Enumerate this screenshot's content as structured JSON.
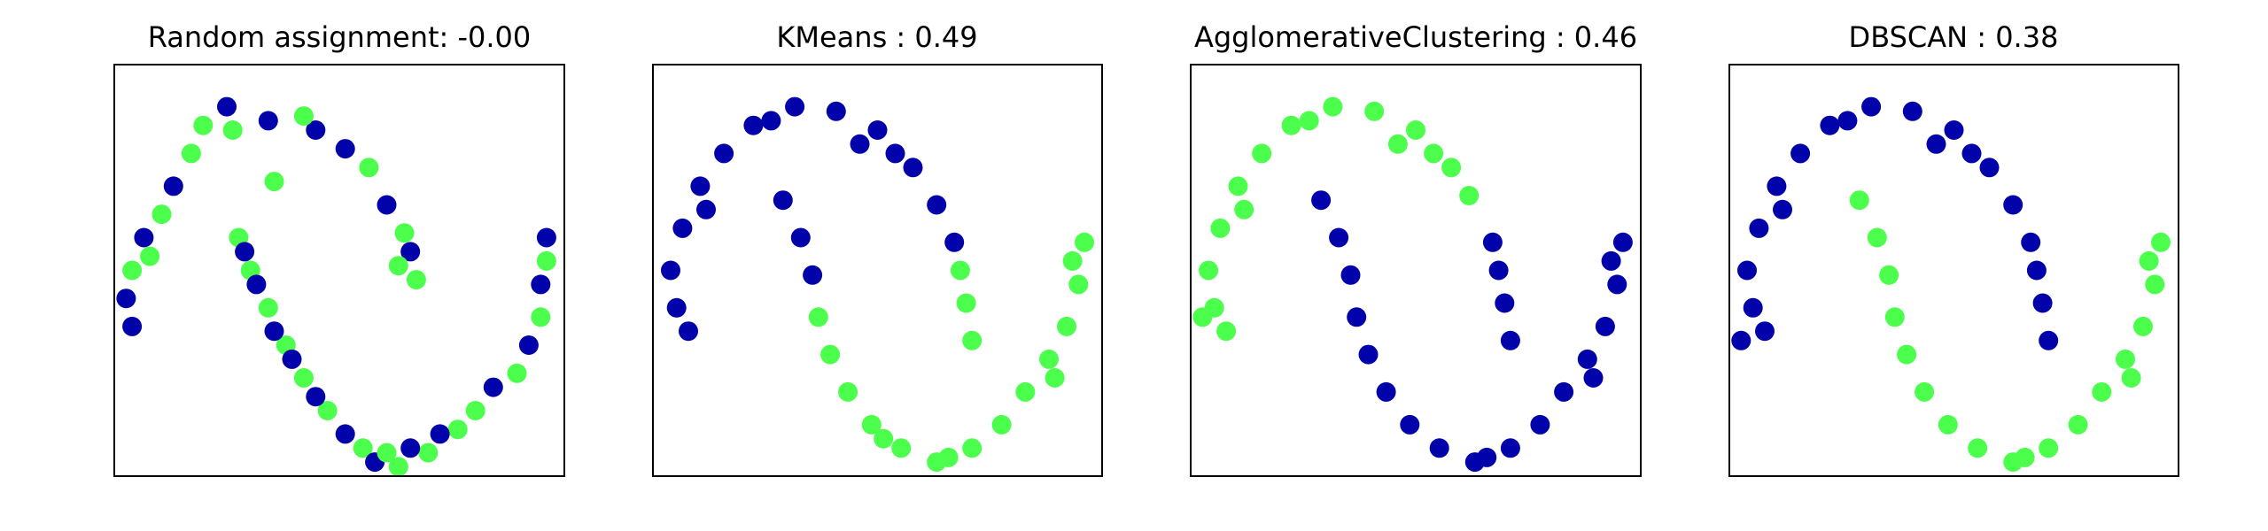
{
  "figure": {
    "colors": {
      "cluster_0": "#0202aa",
      "cluster_1": "#4dff4d"
    }
  },
  "chart_data": [
    {
      "type": "scatter",
      "title": "Random assignment: -0.00",
      "xlim": [
        -1.6,
        2.2
      ],
      "ylim": [
        -2.0,
        2.4
      ],
      "x_ticks": "none",
      "y_ticks": "none",
      "legend": "none",
      "grid": false,
      "points": [
        {
          "x": 1.3,
          "y": -1.5,
          "c": 1
        },
        {
          "x": 1.05,
          "y": -1.75,
          "c": 1
        },
        {
          "x": 0.8,
          "y": -1.9,
          "c": 1
        },
        {
          "x": 0.5,
          "y": -1.7,
          "c": 1
        },
        {
          "x": 0.2,
          "y": -1.3,
          "c": 1
        },
        {
          "x": 0.0,
          "y": -0.95,
          "c": 1
        },
        {
          "x": -0.15,
          "y": -0.6,
          "c": 1
        },
        {
          "x": -0.3,
          "y": -0.2,
          "c": 1
        },
        {
          "x": -0.45,
          "y": 0.2,
          "c": 1
        },
        {
          "x": -0.55,
          "y": 0.55,
          "c": 1
        },
        {
          "x": -0.25,
          "y": 1.15,
          "c": 1
        },
        {
          "x": -0.6,
          "y": 1.7,
          "c": 1
        },
        {
          "x": -0.95,
          "y": 1.45,
          "c": 1
        },
        {
          "x": -1.2,
          "y": 0.8,
          "c": 1
        },
        {
          "x": -1.45,
          "y": 0.2,
          "c": 1
        },
        {
          "x": 0.55,
          "y": 1.3,
          "c": 1
        },
        {
          "x": 0.85,
          "y": 0.6,
          "c": 1
        },
        {
          "x": 0.95,
          "y": 0.1,
          "c": 1
        },
        {
          "x": 1.8,
          "y": -0.9,
          "c": 1
        },
        {
          "x": 2.0,
          "y": -0.3,
          "c": 1
        },
        {
          "x": 2.05,
          "y": 0.3,
          "c": 1
        },
        {
          "x": 1.6,
          "y": -1.05,
          "c": 0
        },
        {
          "x": 1.15,
          "y": -1.55,
          "c": 0
        },
        {
          "x": 0.9,
          "y": -1.7,
          "c": 0
        },
        {
          "x": 0.6,
          "y": -1.85,
          "c": 0
        },
        {
          "x": 0.35,
          "y": -1.55,
          "c": 0
        },
        {
          "x": 0.1,
          "y": -1.15,
          "c": 0
        },
        {
          "x": -0.1,
          "y": -0.75,
          "c": 0
        },
        {
          "x": -0.25,
          "y": -0.45,
          "c": 0
        },
        {
          "x": -0.4,
          "y": 0.05,
          "c": 0
        },
        {
          "x": -0.5,
          "y": 0.4,
          "c": 0
        },
        {
          "x": -0.65,
          "y": 1.95,
          "c": 0
        },
        {
          "x": -0.3,
          "y": 1.8,
          "c": 0
        },
        {
          "x": 0.1,
          "y": 1.7,
          "c": 0
        },
        {
          "x": 0.35,
          "y": 1.5,
          "c": 0
        },
        {
          "x": 0.7,
          "y": 0.9,
          "c": 0
        },
        {
          "x": 0.9,
          "y": 0.4,
          "c": 0
        },
        {
          "x": -1.1,
          "y": 1.1,
          "c": 0
        },
        {
          "x": -1.35,
          "y": 0.55,
          "c": 0
        },
        {
          "x": -1.5,
          "y": -0.1,
          "c": 0
        },
        {
          "x": -1.45,
          "y": -0.4,
          "c": 0
        },
        {
          "x": 1.9,
          "y": -0.6,
          "c": 0
        },
        {
          "x": 2.0,
          "y": 0.05,
          "c": 0
        },
        {
          "x": 2.05,
          "y": 0.55,
          "c": 0
        },
        {
          "x": 0.7,
          "y": -1.75,
          "c": 1
        },
        {
          "x": 1.45,
          "y": -1.3,
          "c": 1
        },
        {
          "x": 0.0,
          "y": 1.85,
          "c": 1
        },
        {
          "x": -0.85,
          "y": 1.75,
          "c": 1
        },
        {
          "x": -1.3,
          "y": 0.35,
          "c": 1
        },
        {
          "x": 0.8,
          "y": 0.25,
          "c": 1
        }
      ]
    },
    {
      "type": "scatter",
      "title": "KMeans : 0.49",
      "xlim": [
        -1.6,
        2.2
      ],
      "ylim": [
        -2.0,
        2.4
      ],
      "x_ticks": "none",
      "y_ticks": "none",
      "legend": "none",
      "grid": false,
      "points": [
        {
          "x": -1.45,
          "y": 0.2,
          "c": 0
        },
        {
          "x": -1.35,
          "y": 0.65,
          "c": 0
        },
        {
          "x": -1.2,
          "y": 1.1,
          "c": 0
        },
        {
          "x": -1.0,
          "y": 1.45,
          "c": 0
        },
        {
          "x": -0.75,
          "y": 1.75,
          "c": 0
        },
        {
          "x": -0.4,
          "y": 1.95,
          "c": 0
        },
        {
          "x": -0.05,
          "y": 1.9,
          "c": 0
        },
        {
          "x": 0.3,
          "y": 1.7,
          "c": 0
        },
        {
          "x": 0.6,
          "y": 1.3,
          "c": 0
        },
        {
          "x": 0.8,
          "y": 0.9,
          "c": 0
        },
        {
          "x": 0.95,
          "y": 0.5,
          "c": 0
        },
        {
          "x": -1.4,
          "y": -0.2,
          "c": 0
        },
        {
          "x": -1.3,
          "y": -0.45,
          "c": 0
        },
        {
          "x": -0.5,
          "y": 0.95,
          "c": 0
        },
        {
          "x": -0.35,
          "y": 0.55,
          "c": 0
        },
        {
          "x": -0.25,
          "y": 0.15,
          "c": 0
        },
        {
          "x": -0.6,
          "y": 1.8,
          "c": 0
        },
        {
          "x": 0.15,
          "y": 1.55,
          "c": 0
        },
        {
          "x": -1.15,
          "y": 0.85,
          "c": 0
        },
        {
          "x": 0.45,
          "y": 1.45,
          "c": 0
        },
        {
          "x": -0.2,
          "y": -0.3,
          "c": 1
        },
        {
          "x": -0.1,
          "y": -0.7,
          "c": 1
        },
        {
          "x": 0.05,
          "y": -1.1,
          "c": 1
        },
        {
          "x": 0.25,
          "y": -1.45,
          "c": 1
        },
        {
          "x": 0.5,
          "y": -1.7,
          "c": 1
        },
        {
          "x": 0.8,
          "y": -1.85,
          "c": 1
        },
        {
          "x": 1.1,
          "y": -1.7,
          "c": 1
        },
        {
          "x": 1.35,
          "y": -1.45,
          "c": 1
        },
        {
          "x": 1.55,
          "y": -1.1,
          "c": 1
        },
        {
          "x": 1.75,
          "y": -0.75,
          "c": 1
        },
        {
          "x": 1.9,
          "y": -0.4,
          "c": 1
        },
        {
          "x": 2.0,
          "y": 0.05,
          "c": 1
        },
        {
          "x": 2.05,
          "y": 0.5,
          "c": 1
        },
        {
          "x": 1.0,
          "y": 0.2,
          "c": 1
        },
        {
          "x": 1.05,
          "y": -0.15,
          "c": 1
        },
        {
          "x": 1.1,
          "y": -0.55,
          "c": 1
        },
        {
          "x": 0.9,
          "y": -1.8,
          "c": 1
        },
        {
          "x": 1.8,
          "y": -0.95,
          "c": 1
        },
        {
          "x": 0.35,
          "y": -1.6,
          "c": 1
        },
        {
          "x": 1.95,
          "y": 0.3,
          "c": 1
        }
      ]
    },
    {
      "type": "scatter",
      "title": "AgglomerativeClustering : 0.46",
      "xlim": [
        -1.6,
        2.2
      ],
      "ylim": [
        -2.0,
        2.4
      ],
      "x_ticks": "none",
      "y_ticks": "none",
      "legend": "none",
      "grid": false,
      "points": [
        {
          "x": -1.45,
          "y": 0.2,
          "c": 1
        },
        {
          "x": -1.35,
          "y": 0.65,
          "c": 1
        },
        {
          "x": -1.2,
          "y": 1.1,
          "c": 1
        },
        {
          "x": -1.0,
          "y": 1.45,
          "c": 1
        },
        {
          "x": -0.75,
          "y": 1.75,
          "c": 1
        },
        {
          "x": -0.4,
          "y": 1.95,
          "c": 1
        },
        {
          "x": -0.05,
          "y": 1.9,
          "c": 1
        },
        {
          "x": 0.3,
          "y": 1.7,
          "c": 1
        },
        {
          "x": 0.6,
          "y": 1.3,
          "c": 1
        },
        {
          "x": 0.75,
          "y": 1.0,
          "c": 1
        },
        {
          "x": -1.4,
          "y": -0.2,
          "c": 1
        },
        {
          "x": -1.3,
          "y": -0.45,
          "c": 1
        },
        {
          "x": -0.6,
          "y": 1.8,
          "c": 1
        },
        {
          "x": 0.15,
          "y": 1.55,
          "c": 1
        },
        {
          "x": -1.15,
          "y": 0.85,
          "c": 1
        },
        {
          "x": 0.45,
          "y": 1.45,
          "c": 1
        },
        {
          "x": -1.5,
          "y": -0.3,
          "c": 1
        },
        {
          "x": -0.5,
          "y": 0.95,
          "c": 0
        },
        {
          "x": -0.35,
          "y": 0.55,
          "c": 0
        },
        {
          "x": -0.25,
          "y": 0.15,
          "c": 0
        },
        {
          "x": -0.2,
          "y": -0.3,
          "c": 0
        },
        {
          "x": -0.1,
          "y": -0.7,
          "c": 0
        },
        {
          "x": 0.05,
          "y": -1.1,
          "c": 0
        },
        {
          "x": 0.25,
          "y": -1.45,
          "c": 0
        },
        {
          "x": 0.5,
          "y": -1.7,
          "c": 0
        },
        {
          "x": 0.8,
          "y": -1.85,
          "c": 0
        },
        {
          "x": 1.1,
          "y": -1.7,
          "c": 0
        },
        {
          "x": 1.35,
          "y": -1.45,
          "c": 0
        },
        {
          "x": 1.55,
          "y": -1.1,
          "c": 0
        },
        {
          "x": 1.75,
          "y": -0.75,
          "c": 0
        },
        {
          "x": 1.9,
          "y": -0.4,
          "c": 0
        },
        {
          "x": 2.0,
          "y": 0.05,
          "c": 0
        },
        {
          "x": 2.05,
          "y": 0.5,
          "c": 0
        },
        {
          "x": 0.95,
          "y": 0.5,
          "c": 0
        },
        {
          "x": 1.0,
          "y": 0.2,
          "c": 0
        },
        {
          "x": 1.05,
          "y": -0.15,
          "c": 0
        },
        {
          "x": 1.1,
          "y": -0.55,
          "c": 0
        },
        {
          "x": 0.9,
          "y": -1.8,
          "c": 0
        },
        {
          "x": 1.8,
          "y": -0.95,
          "c": 0
        },
        {
          "x": 1.95,
          "y": 0.3,
          "c": 0
        }
      ]
    },
    {
      "type": "scatter",
      "title": "DBSCAN : 0.38",
      "xlim": [
        -1.6,
        2.2
      ],
      "ylim": [
        -2.0,
        2.4
      ],
      "x_ticks": "none",
      "y_ticks": "none",
      "legend": "none",
      "grid": false,
      "points": [
        {
          "x": -1.45,
          "y": 0.2,
          "c": 0
        },
        {
          "x": -1.35,
          "y": 0.65,
          "c": 0
        },
        {
          "x": -1.2,
          "y": 1.1,
          "c": 0
        },
        {
          "x": -1.0,
          "y": 1.45,
          "c": 0
        },
        {
          "x": -0.75,
          "y": 1.75,
          "c": 0
        },
        {
          "x": -0.4,
          "y": 1.95,
          "c": 0
        },
        {
          "x": -0.05,
          "y": 1.9,
          "c": 0
        },
        {
          "x": 0.3,
          "y": 1.7,
          "c": 0
        },
        {
          "x": 0.6,
          "y": 1.3,
          "c": 0
        },
        {
          "x": 0.8,
          "y": 0.9,
          "c": 0
        },
        {
          "x": 0.95,
          "y": 0.5,
          "c": 0
        },
        {
          "x": 1.0,
          "y": 0.2,
          "c": 0
        },
        {
          "x": 1.05,
          "y": -0.15,
          "c": 0
        },
        {
          "x": 1.1,
          "y": -0.55,
          "c": 0
        },
        {
          "x": -1.4,
          "y": -0.2,
          "c": 0
        },
        {
          "x": -1.3,
          "y": -0.45,
          "c": 0
        },
        {
          "x": -0.6,
          "y": 1.8,
          "c": 0
        },
        {
          "x": 0.15,
          "y": 1.55,
          "c": 0
        },
        {
          "x": -1.15,
          "y": 0.85,
          "c": 0
        },
        {
          "x": 0.45,
          "y": 1.45,
          "c": 0
        },
        {
          "x": -1.5,
          "y": -0.55,
          "c": 0
        },
        {
          "x": -0.5,
          "y": 0.95,
          "c": 1
        },
        {
          "x": -0.35,
          "y": 0.55,
          "c": 1
        },
        {
          "x": -0.25,
          "y": 0.15,
          "c": 1
        },
        {
          "x": -0.2,
          "y": -0.3,
          "c": 1
        },
        {
          "x": -0.1,
          "y": -0.7,
          "c": 1
        },
        {
          "x": 0.05,
          "y": -1.1,
          "c": 1
        },
        {
          "x": 0.25,
          "y": -1.45,
          "c": 1
        },
        {
          "x": 0.5,
          "y": -1.7,
          "c": 1
        },
        {
          "x": 0.8,
          "y": -1.85,
          "c": 1
        },
        {
          "x": 1.1,
          "y": -1.7,
          "c": 1
        },
        {
          "x": 1.35,
          "y": -1.45,
          "c": 1
        },
        {
          "x": 1.55,
          "y": -1.1,
          "c": 1
        },
        {
          "x": 1.75,
          "y": -0.75,
          "c": 1
        },
        {
          "x": 1.9,
          "y": -0.4,
          "c": 1
        },
        {
          "x": 2.0,
          "y": 0.05,
          "c": 1
        },
        {
          "x": 2.05,
          "y": 0.5,
          "c": 1
        },
        {
          "x": 0.9,
          "y": -1.8,
          "c": 1
        },
        {
          "x": 1.8,
          "y": -0.95,
          "c": 1
        },
        {
          "x": 1.95,
          "y": 0.3,
          "c": 1
        }
      ]
    }
  ]
}
